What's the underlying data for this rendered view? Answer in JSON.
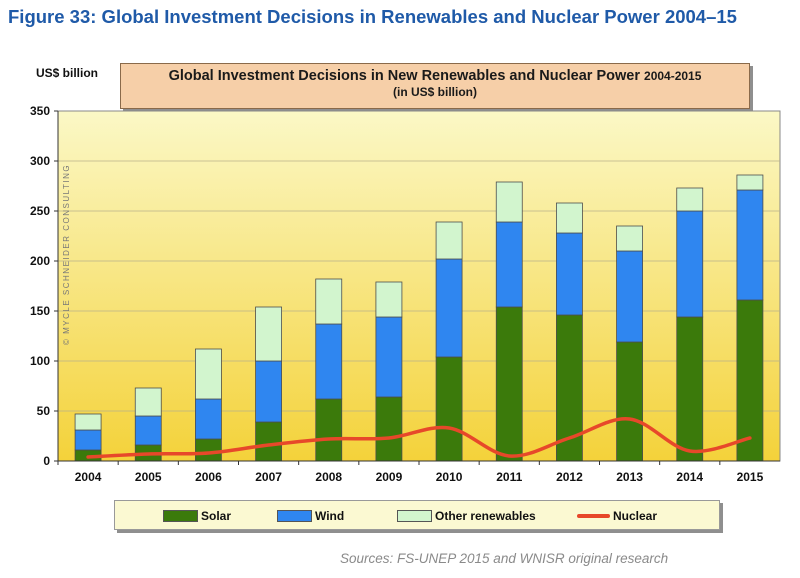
{
  "figure_title": "Figure 33: Global Investment Decisions in Renewables and Nuclear Power 2004–15",
  "source_note": "Sources: FS-UNEP 2015 and WNISR original research",
  "credit": "© MYCLE SCHNEIDER CONSULTING",
  "colors": {
    "solar": "#3b7a0b",
    "wind": "#2f86f0",
    "other": "#d2f5ce",
    "nuclear": "#e7482a",
    "plot_top": "#fbf8c6",
    "plot_bottom": "#f4d23a"
  },
  "chart_data": {
    "type": "bar",
    "stacked": true,
    "title": "Global Investment Decisions in New Renewables and Nuclear Power",
    "title_years": "2004-2015",
    "subtitle": "(in US$ billion)",
    "ylabel": "US$ billion",
    "ylim": [
      0,
      350
    ],
    "yticks": [
      0,
      50,
      100,
      150,
      200,
      250,
      300,
      350
    ],
    "grid": true,
    "legend_position": "bottom",
    "categories": [
      "2004",
      "2005",
      "2006",
      "2007",
      "2008",
      "2009",
      "2010",
      "2011",
      "2012",
      "2013",
      "2014",
      "2015"
    ],
    "series": [
      {
        "name": "Solar",
        "kind": "bar",
        "values": [
          11,
          16,
          22,
          39,
          62,
          64,
          104,
          154,
          146,
          119,
          144,
          161
        ]
      },
      {
        "name": "Wind",
        "kind": "bar",
        "values": [
          20,
          29,
          40,
          61,
          75,
          80,
          98,
          85,
          82,
          91,
          106,
          110
        ]
      },
      {
        "name": "Other renewables",
        "kind": "bar",
        "values": [
          16,
          28,
          50,
          54,
          45,
          35,
          37,
          40,
          30,
          25,
          23,
          15
        ]
      },
      {
        "name": "Nuclear",
        "kind": "line",
        "values": [
          4,
          7,
          8,
          16,
          22,
          23,
          33,
          5,
          23,
          42,
          10,
          23
        ]
      }
    ]
  }
}
